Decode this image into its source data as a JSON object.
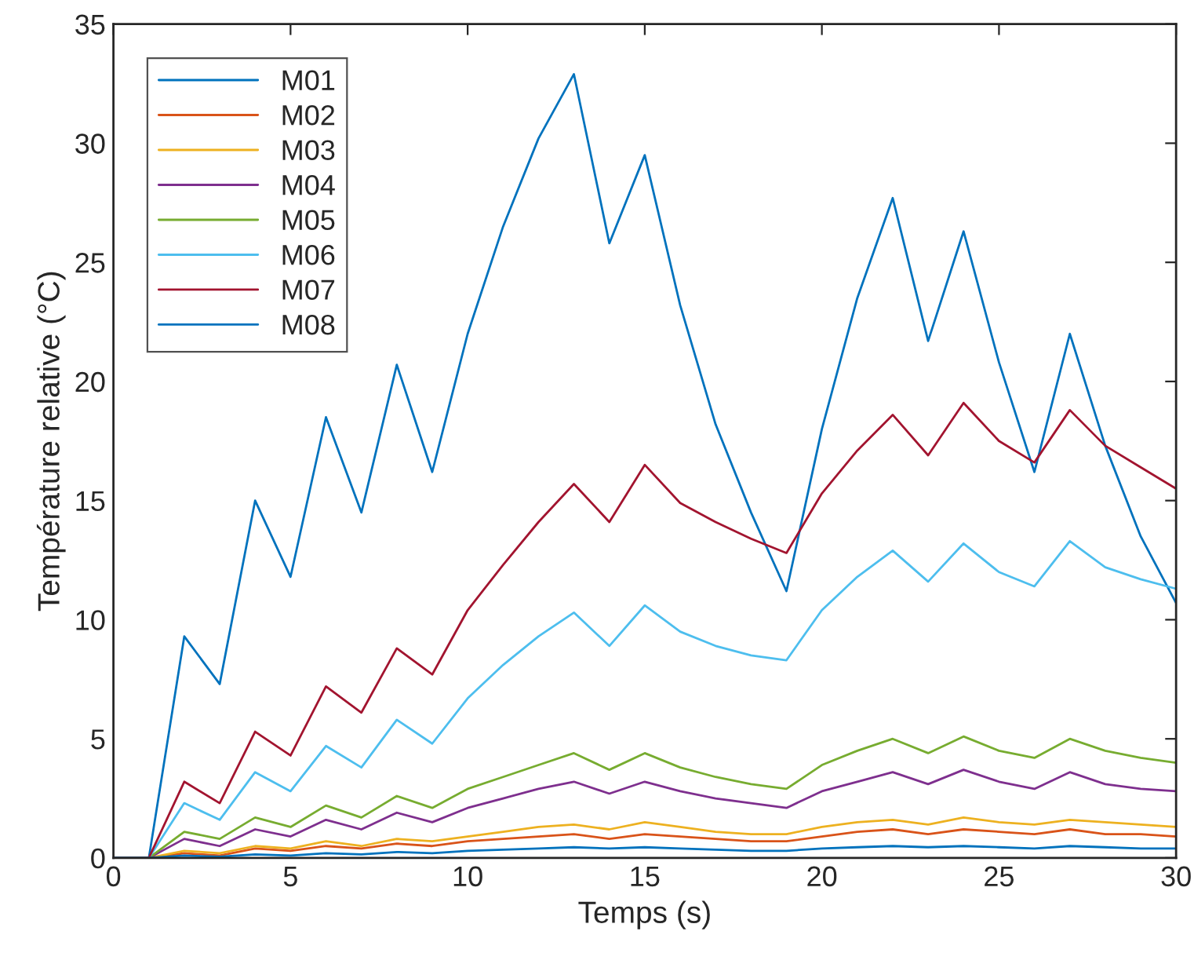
{
  "chart_data": {
    "type": "line",
    "xlabel": "Temps (s)",
    "ylabel": "Température relative (°C)",
    "x": [
      0,
      1,
      2,
      3,
      4,
      5,
      6,
      7,
      8,
      9,
      10,
      11,
      12,
      13,
      14,
      15,
      16,
      17,
      18,
      19,
      20,
      21,
      22,
      23,
      24,
      25,
      26,
      27,
      28,
      29,
      30
    ],
    "xlim": [
      0,
      30
    ],
    "ylim": [
      0,
      35
    ],
    "xticks": [
      0,
      5,
      10,
      15,
      20,
      25,
      30
    ],
    "yticks": [
      0,
      5,
      10,
      15,
      20,
      25,
      30,
      35
    ],
    "grid": false,
    "legend": "top left",
    "marker": "none",
    "line_style": "solid",
    "series": [
      {
        "name": "M01",
        "color": "#0072bd",
        "values": [
          0,
          0,
          9.3,
          7.3,
          15,
          11.8,
          18.5,
          14.5,
          20.7,
          16.2,
          22,
          26.5,
          30.2,
          32.9,
          25.8,
          29.5,
          23.2,
          18.2,
          14.5,
          11.2,
          18,
          23.5,
          27.7,
          21.7,
          26.3,
          20.8,
          16.2,
          22,
          17.3,
          13.5,
          10.7
        ]
      },
      {
        "name": "M02",
        "color": "#d95319",
        "values": [
          0,
          0,
          0.2,
          0.1,
          0.4,
          0.3,
          0.5,
          0.4,
          0.6,
          0.5,
          0.7,
          0.8,
          0.9,
          1.0,
          0.8,
          1.0,
          0.9,
          0.8,
          0.7,
          0.7,
          0.9,
          1.1,
          1.2,
          1.0,
          1.2,
          1.1,
          1.0,
          1.2,
          1.0,
          1.0,
          0.9
        ]
      },
      {
        "name": "M03",
        "color": "#edb120",
        "values": [
          0,
          0,
          0.3,
          0.2,
          0.5,
          0.4,
          0.7,
          0.5,
          0.8,
          0.7,
          0.9,
          1.1,
          1.3,
          1.4,
          1.2,
          1.5,
          1.3,
          1.1,
          1.0,
          1.0,
          1.3,
          1.5,
          1.6,
          1.4,
          1.7,
          1.5,
          1.4,
          1.6,
          1.5,
          1.4,
          1.3
        ]
      },
      {
        "name": "M04",
        "color": "#7e2f8e",
        "values": [
          0,
          0,
          0.8,
          0.5,
          1.2,
          0.9,
          1.6,
          1.2,
          1.9,
          1.5,
          2.1,
          2.5,
          2.9,
          3.2,
          2.7,
          3.2,
          2.8,
          2.5,
          2.3,
          2.1,
          2.8,
          3.2,
          3.6,
          3.1,
          3.7,
          3.2,
          2.9,
          3.6,
          3.1,
          2.9,
          2.8
        ]
      },
      {
        "name": "M05",
        "color": "#77ac30",
        "values": [
          0,
          0,
          1.1,
          0.8,
          1.7,
          1.3,
          2.2,
          1.7,
          2.6,
          2.1,
          2.9,
          3.4,
          3.9,
          4.4,
          3.7,
          4.4,
          3.8,
          3.4,
          3.1,
          2.9,
          3.9,
          4.5,
          5.0,
          4.4,
          5.1,
          4.5,
          4.2,
          5.0,
          4.5,
          4.2,
          4.0
        ]
      },
      {
        "name": "M06",
        "color": "#4dbeee",
        "values": [
          0,
          0,
          2.3,
          1.6,
          3.6,
          2.8,
          4.7,
          3.8,
          5.8,
          4.8,
          6.7,
          8.1,
          9.3,
          10.3,
          8.9,
          10.6,
          9.5,
          8.9,
          8.5,
          8.3,
          10.4,
          11.8,
          12.9,
          11.6,
          13.2,
          12.0,
          11.4,
          13.3,
          12.2,
          11.7,
          11.3
        ]
      },
      {
        "name": "M07",
        "color": "#a2142f",
        "values": [
          0,
          0,
          3.2,
          2.3,
          5.3,
          4.3,
          7.2,
          6.1,
          8.8,
          7.7,
          10.4,
          12.3,
          14.1,
          15.7,
          14.1,
          16.5,
          14.9,
          14.1,
          13.4,
          12.8,
          15.3,
          17.1,
          18.6,
          16.9,
          19.1,
          17.5,
          16.6,
          18.8,
          17.3,
          16.4,
          15.5
        ]
      },
      {
        "name": "M08",
        "color": "#0072bd",
        "values": [
          0,
          0,
          0.1,
          0.05,
          0.15,
          0.1,
          0.2,
          0.15,
          0.25,
          0.2,
          0.3,
          0.35,
          0.4,
          0.45,
          0.4,
          0.45,
          0.4,
          0.35,
          0.3,
          0.3,
          0.4,
          0.45,
          0.5,
          0.45,
          0.5,
          0.45,
          0.4,
          0.5,
          0.45,
          0.4,
          0.4
        ]
      }
    ]
  }
}
